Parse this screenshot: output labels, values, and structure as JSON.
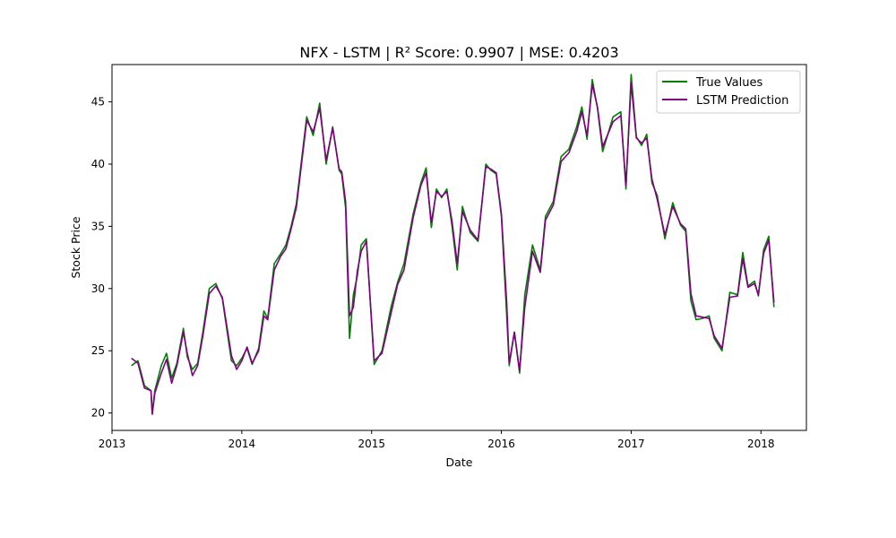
{
  "chart_data": {
    "type": "line",
    "title": "NFX - LSTM | R² Score: 0.9907 | MSE: 0.4203",
    "xlabel": "Date",
    "ylabel": "Stock Price",
    "xlim": [
      2013.0,
      2018.35
    ],
    "ylim": [
      18.6,
      48.0
    ],
    "x_ticks": [
      2013,
      2014,
      2015,
      2016,
      2017,
      2018
    ],
    "x_tick_labels": [
      "2013",
      "2014",
      "2015",
      "2016",
      "2017",
      "2018"
    ],
    "y_ticks": [
      20,
      25,
      30,
      35,
      40,
      45
    ],
    "y_tick_labels": [
      "20",
      "25",
      "30",
      "35",
      "40",
      "45"
    ],
    "grid": false,
    "legend_position": "upper right",
    "series": [
      {
        "name": "True Values",
        "color": "#008000",
        "x": [
          2013.15,
          2013.2,
          2013.25,
          2013.3,
          2013.31,
          2013.33,
          2013.38,
          2013.42,
          2013.46,
          2013.5,
          2013.55,
          2013.58,
          2013.62,
          2013.66,
          2013.7,
          2013.75,
          2013.8,
          2013.85,
          2013.92,
          2013.96,
          2014.0,
          2014.04,
          2014.08,
          2014.13,
          2014.17,
          2014.2,
          2014.25,
          2014.3,
          2014.34,
          2014.38,
          2014.42,
          2014.5,
          2014.55,
          2014.6,
          2014.65,
          2014.7,
          2014.75,
          2014.77,
          2014.8,
          2014.83,
          2014.86,
          2014.89,
          2014.92,
          2014.96,
          2015.02,
          2015.08,
          2015.15,
          2015.2,
          2015.25,
          2015.32,
          2015.38,
          2015.42,
          2015.46,
          2015.5,
          2015.54,
          2015.58,
          2015.62,
          2015.66,
          2015.7,
          2015.76,
          2015.82,
          2015.88,
          2015.92,
          2015.96,
          2016.0,
          2016.04,
          2016.06,
          2016.1,
          2016.14,
          2016.18,
          2016.24,
          2016.3,
          2016.34,
          2016.4,
          2016.46,
          2016.52,
          2016.58,
          2016.62,
          2016.66,
          2016.7,
          2016.74,
          2016.78,
          2016.86,
          2016.92,
          2016.96,
          2017.0,
          2017.04,
          2017.08,
          2017.12,
          2017.16,
          2017.2,
          2017.26,
          2017.32,
          2017.38,
          2017.42,
          2017.46,
          2017.5,
          2017.55,
          2017.6,
          2017.64,
          2017.7,
          2017.76,
          2017.82,
          2017.86,
          2017.9,
          2017.95,
          2017.98,
          2018.02,
          2018.06,
          2018.1
        ],
        "values": [
          23.8,
          24.2,
          22.2,
          21.8,
          20.0,
          21.8,
          23.8,
          24.8,
          22.8,
          24.0,
          26.8,
          24.5,
          23.5,
          24.0,
          26.5,
          30.0,
          30.4,
          29.2,
          24.2,
          23.8,
          24.4,
          25.2,
          23.9,
          25.2,
          28.2,
          27.6,
          32.0,
          32.8,
          33.5,
          35.0,
          36.8,
          43.8,
          42.3,
          44.9,
          40.0,
          43.0,
          39.5,
          39.2,
          36.5,
          26.0,
          29.5,
          31.0,
          33.5,
          34.0,
          23.9,
          25.0,
          28.5,
          30.5,
          32.0,
          36.0,
          38.5,
          39.7,
          34.9,
          38.0,
          37.3,
          38.0,
          35.0,
          31.5,
          36.6,
          34.5,
          33.8,
          40.0,
          39.5,
          39.2,
          35.8,
          28.0,
          23.8,
          26.5,
          23.2,
          29.5,
          33.5,
          31.5,
          35.8,
          37.0,
          40.6,
          41.2,
          43.0,
          44.6,
          42.0,
          46.8,
          44.5,
          41.0,
          43.8,
          44.2,
          38.0,
          47.2,
          42.2,
          41.5,
          42.4,
          38.5,
          37.5,
          34.0,
          36.9,
          35.1,
          34.6,
          29.0,
          27.5,
          27.6,
          27.8,
          26.0,
          25.0,
          29.7,
          29.5,
          32.9,
          30.2,
          30.6,
          29.4,
          33.1,
          34.2,
          28.5
        ]
      },
      {
        "name": "LSTM Prediction",
        "color": "#800080",
        "x": [
          2013.15,
          2013.2,
          2013.25,
          2013.3,
          2013.31,
          2013.33,
          2013.38,
          2013.42,
          2013.46,
          2013.5,
          2013.55,
          2013.58,
          2013.62,
          2013.66,
          2013.7,
          2013.75,
          2013.8,
          2013.85,
          2013.92,
          2013.96,
          2014.0,
          2014.04,
          2014.08,
          2014.13,
          2014.17,
          2014.2,
          2014.25,
          2014.3,
          2014.34,
          2014.38,
          2014.42,
          2014.5,
          2014.55,
          2014.6,
          2014.65,
          2014.7,
          2014.75,
          2014.77,
          2014.8,
          2014.83,
          2014.86,
          2014.89,
          2014.92,
          2014.96,
          2015.02,
          2015.08,
          2015.15,
          2015.2,
          2015.25,
          2015.32,
          2015.38,
          2015.42,
          2015.46,
          2015.5,
          2015.54,
          2015.58,
          2015.62,
          2015.66,
          2015.7,
          2015.76,
          2015.82,
          2015.88,
          2015.92,
          2015.96,
          2016.0,
          2016.04,
          2016.06,
          2016.1,
          2016.14,
          2016.18,
          2016.24,
          2016.3,
          2016.34,
          2016.4,
          2016.46,
          2016.52,
          2016.58,
          2016.62,
          2016.66,
          2016.7,
          2016.74,
          2016.78,
          2016.86,
          2016.92,
          2016.96,
          2017.0,
          2017.04,
          2017.08,
          2017.12,
          2017.16,
          2017.2,
          2017.26,
          2017.32,
          2017.38,
          2017.42,
          2017.46,
          2017.5,
          2017.55,
          2017.6,
          2017.64,
          2017.7,
          2017.76,
          2017.82,
          2017.86,
          2017.9,
          2017.95,
          2017.98,
          2018.02,
          2018.06,
          2018.1
        ],
        "values": [
          24.4,
          24.0,
          22.0,
          21.8,
          19.9,
          21.6,
          23.2,
          24.3,
          22.4,
          23.8,
          26.5,
          24.8,
          23.0,
          23.8,
          26.2,
          29.6,
          30.2,
          29.3,
          24.6,
          23.5,
          24.2,
          25.3,
          24.0,
          25.0,
          27.8,
          27.5,
          31.5,
          32.6,
          33.2,
          34.8,
          36.5,
          43.5,
          42.6,
          44.5,
          40.3,
          42.9,
          39.6,
          39.4,
          37.0,
          27.8,
          28.5,
          31.4,
          33.0,
          33.8,
          24.2,
          24.8,
          28.0,
          30.3,
          31.5,
          35.7,
          38.3,
          39.3,
          35.3,
          37.8,
          37.4,
          37.8,
          35.4,
          32.0,
          36.2,
          34.7,
          33.9,
          39.8,
          39.6,
          39.3,
          36.0,
          29.0,
          24.0,
          26.5,
          23.4,
          28.5,
          33.0,
          31.3,
          35.5,
          36.7,
          40.2,
          40.9,
          42.6,
          44.2,
          42.3,
          46.4,
          44.6,
          41.4,
          43.4,
          43.9,
          38.3,
          46.5,
          42.1,
          41.7,
          42.1,
          38.8,
          37.2,
          34.3,
          36.6,
          35.2,
          34.8,
          29.6,
          27.8,
          27.7,
          27.6,
          26.2,
          25.2,
          29.3,
          29.4,
          32.4,
          30.1,
          30.4,
          29.5,
          32.8,
          33.9,
          28.9
        ]
      }
    ]
  }
}
